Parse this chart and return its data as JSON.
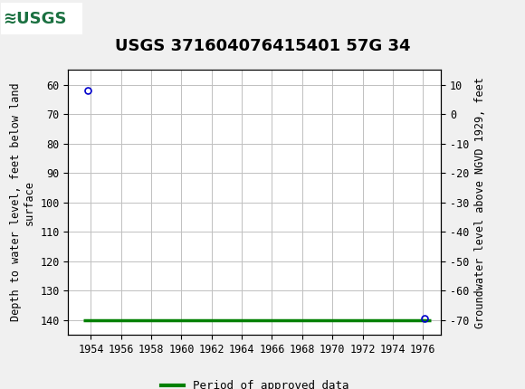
{
  "title": "USGS 371604076415401 57G 34",
  "header_color": "#1a7040",
  "header_border_color": "#2d2d2d",
  "background_color": "#f0f0f0",
  "plot_bg_color": "#ffffff",
  "grid_color": "#c0c0c0",
  "ylabel_left": "Depth to water level, feet below land\nsurface",
  "ylabel_right": "Groundwater level above NGVD 1929, feet",
  "xlim": [
    1952.5,
    1977.2
  ],
  "ylim_left_top": 55,
  "ylim_left_bottom": 145,
  "ylim_right_top": 15,
  "ylim_right_bottom": -75,
  "yticks_left": [
    60,
    70,
    80,
    90,
    100,
    110,
    120,
    130,
    140
  ],
  "yticks_right": [
    10,
    0,
    -10,
    -20,
    -30,
    -40,
    -50,
    -60,
    -70
  ],
  "xticks": [
    1954,
    1956,
    1958,
    1960,
    1962,
    1964,
    1966,
    1968,
    1970,
    1972,
    1974,
    1976
  ],
  "data_points_x": [
    1953.8,
    1976.1
  ],
  "data_points_y": [
    62.0,
    139.5
  ],
  "point_color": "#0000cc",
  "approved_line_x": [
    1953.5,
    1976.5
  ],
  "approved_line_y": [
    140.0,
    140.0
  ],
  "approved_color": "#008000",
  "legend_label": "Period of approved data",
  "title_fontsize": 13,
  "axis_label_fontsize": 8.5,
  "tick_fontsize": 8.5,
  "legend_fontsize": 9
}
